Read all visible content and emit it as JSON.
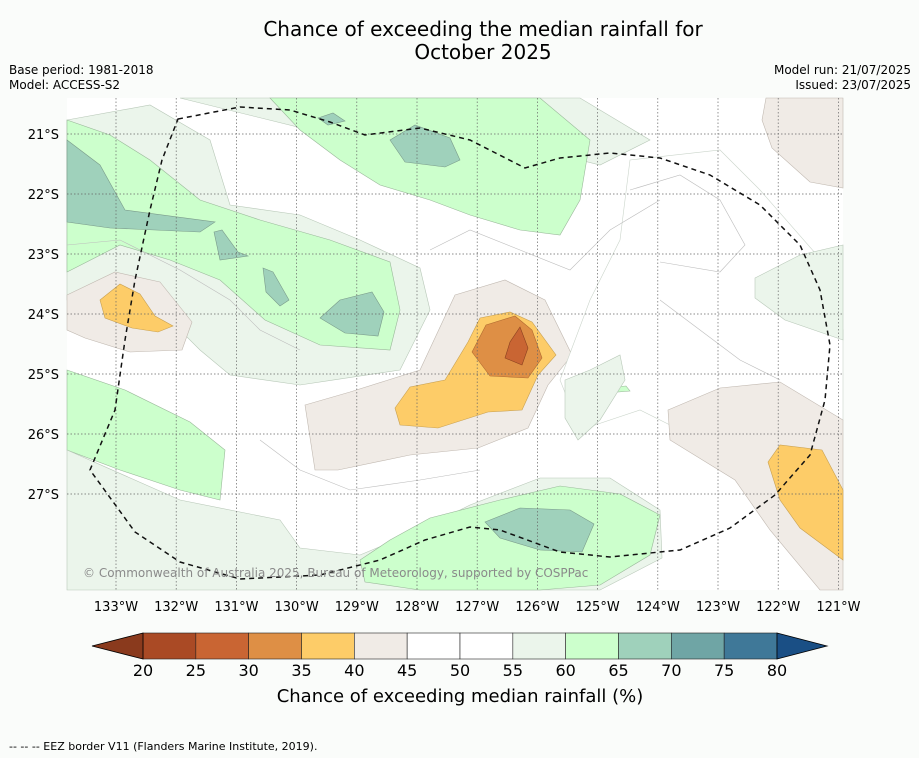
{
  "title_line1": "Chance of exceeding the median rainfall for",
  "title_line2": "October 2025",
  "meta": {
    "base_period": "Base period: 1981-2018",
    "model": "Model: ACCESS-S2",
    "model_run": "Model run: 21/07/2025",
    "issued": "Issued: 23/07/2025"
  },
  "copyright": "© Commonwealth of Australia 2025, Bureau of Meteorology, supported by COSPPac",
  "lat_labels": [
    "21°S",
    "22°S",
    "23°S",
    "24°S",
    "25°S",
    "26°S",
    "27°S"
  ],
  "lon_labels": [
    "133°W",
    "132°W",
    "131°W",
    "130°W",
    "129°W",
    "128°W",
    "127°W",
    "126°W",
    "125°W",
    "124°W",
    "123°W",
    "122°W",
    "121°W"
  ],
  "colorbar": {
    "title": "Chance of exceeding median rainfall (%)",
    "ticks": [
      "20",
      "25",
      "30",
      "35",
      "40",
      "45",
      "50",
      "55",
      "60",
      "65",
      "70",
      "75",
      "80"
    ],
    "colors": [
      "#aa4a25",
      "#c96533",
      "#de8f45",
      "#fdcc68",
      "#f0ebe6",
      "#ffffff",
      "#ffffff",
      "#ebf5eb",
      "#ccffcc",
      "#9fd1bb",
      "#6fa5a5",
      "#3f7898"
    ],
    "under_color": "#8a3a1d",
    "over_color": "#1a4f85"
  },
  "legend_note": "--  --  -- EEZ border V11 (Flanders Marine Institute, 2019)."
}
